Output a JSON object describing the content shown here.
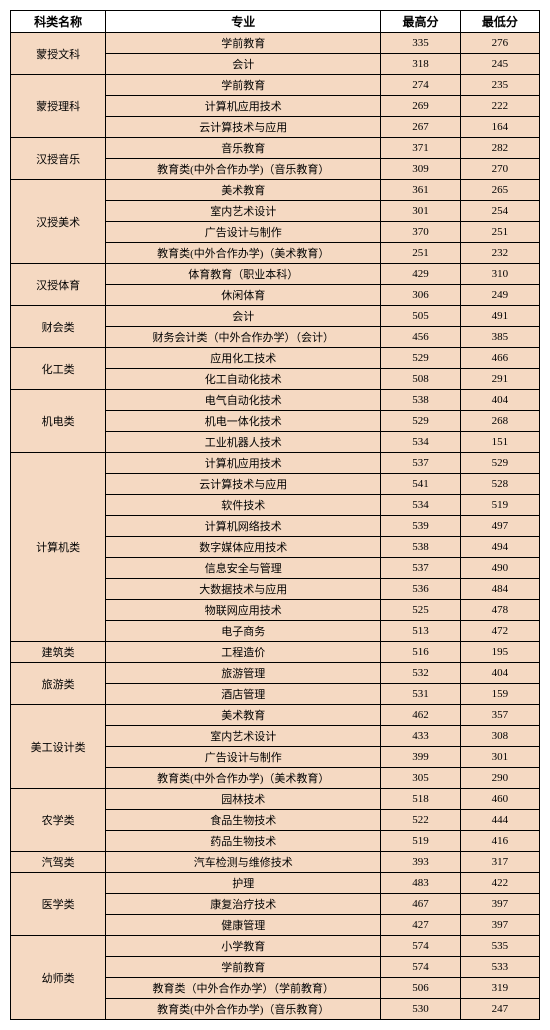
{
  "headers": {
    "category": "科类名称",
    "major": "专业",
    "high": "最高分",
    "low": "最低分"
  },
  "groups": [
    {
      "category": "蒙授文科",
      "rows": [
        {
          "major": "学前教育",
          "high": 335,
          "low": 276
        },
        {
          "major": "会计",
          "high": 318,
          "low": 245
        }
      ]
    },
    {
      "category": "蒙授理科",
      "rows": [
        {
          "major": "学前教育",
          "high": 274,
          "low": 235
        },
        {
          "major": "计算机应用技术",
          "high": 269,
          "low": 222
        },
        {
          "major": "云计算技术与应用",
          "high": 267,
          "low": 164
        }
      ]
    },
    {
      "category": "汉授音乐",
      "rows": [
        {
          "major": "音乐教育",
          "high": 371,
          "low": 282
        },
        {
          "major": "教育类(中外合作办学)（音乐教育）",
          "high": 309,
          "low": 270
        }
      ]
    },
    {
      "category": "汉授美术",
      "rows": [
        {
          "major": "美术教育",
          "high": 361,
          "low": 265
        },
        {
          "major": "室内艺术设计",
          "high": 301,
          "low": 254
        },
        {
          "major": "广告设计与制作",
          "high": 370,
          "low": 251
        },
        {
          "major": "教育类(中外合作办学)（美术教育）",
          "high": 251,
          "low": 232
        }
      ]
    },
    {
      "category": "汉授体育",
      "rows": [
        {
          "major": "体育教育（职业本科）",
          "high": 429,
          "low": 310
        },
        {
          "major": "休闲体育",
          "high": 306,
          "low": 249
        }
      ]
    },
    {
      "category": "财会类",
      "rows": [
        {
          "major": "会计",
          "high": 505,
          "low": 491
        },
        {
          "major": "财务会计类（中外合作办学）（会计）",
          "high": 456,
          "low": 385
        }
      ]
    },
    {
      "category": "化工类",
      "rows": [
        {
          "major": "应用化工技术",
          "high": 529,
          "low": 466
        },
        {
          "major": "化工自动化技术",
          "high": 508,
          "low": 291
        }
      ]
    },
    {
      "category": "机电类",
      "rows": [
        {
          "major": "电气自动化技术",
          "high": 538,
          "low": 404
        },
        {
          "major": "机电一体化技术",
          "high": 529,
          "low": 268
        },
        {
          "major": "工业机器人技术",
          "high": 534,
          "low": 151
        }
      ]
    },
    {
      "category": "计算机类",
      "rows": [
        {
          "major": "计算机应用技术",
          "high": 537,
          "low": 529
        },
        {
          "major": "云计算技术与应用",
          "high": 541,
          "low": 528
        },
        {
          "major": "软件技术",
          "high": 534,
          "low": 519
        },
        {
          "major": "计算机网络技术",
          "high": 539,
          "low": 497
        },
        {
          "major": "数字媒体应用技术",
          "high": 538,
          "low": 494
        },
        {
          "major": "信息安全与管理",
          "high": 537,
          "low": 490
        },
        {
          "major": "大数据技术与应用",
          "high": 536,
          "low": 484
        },
        {
          "major": "物联网应用技术",
          "high": 525,
          "low": 478
        },
        {
          "major": "电子商务",
          "high": 513,
          "low": 472
        }
      ]
    },
    {
      "category": "建筑类",
      "rows": [
        {
          "major": "工程造价",
          "high": 516,
          "low": 195
        }
      ]
    },
    {
      "category": "旅游类",
      "rows": [
        {
          "major": "旅游管理",
          "high": 532,
          "low": 404
        },
        {
          "major": "酒店管理",
          "high": 531,
          "low": 159
        }
      ]
    },
    {
      "category": "美工设计类",
      "rows": [
        {
          "major": "美术教育",
          "high": 462,
          "low": 357
        },
        {
          "major": "室内艺术设计",
          "high": 433,
          "low": 308
        },
        {
          "major": "广告设计与制作",
          "high": 399,
          "low": 301
        },
        {
          "major": "教育类(中外合作办学)（美术教育）",
          "high": 305,
          "low": 290
        }
      ]
    },
    {
      "category": "农学类",
      "rows": [
        {
          "major": "园林技术",
          "high": 518,
          "low": 460
        },
        {
          "major": "食品生物技术",
          "high": 522,
          "low": 444
        },
        {
          "major": "药品生物技术",
          "high": 519,
          "low": 416
        }
      ]
    },
    {
      "category": "汽驾类",
      "rows": [
        {
          "major": "汽车检测与维修技术",
          "high": 393,
          "low": 317
        }
      ]
    },
    {
      "category": "医学类",
      "rows": [
        {
          "major": "护理",
          "high": 483,
          "low": 422
        },
        {
          "major": "康复治疗技术",
          "high": 467,
          "low": 397
        },
        {
          "major": "健康管理",
          "high": 427,
          "low": 397
        }
      ]
    },
    {
      "category": "幼师类",
      "rows": [
        {
          "major": "小学教育",
          "high": 574,
          "low": 535
        },
        {
          "major": "学前教育",
          "high": 574,
          "low": 533
        },
        {
          "major": "教育类（中外合作办学）（学前教育）",
          "high": 506,
          "low": 319
        },
        {
          "major": "教育类(中外合作办学)（音乐教育）",
          "high": 530,
          "low": 247
        }
      ]
    }
  ],
  "style": {
    "row_bg": "#f5d9c2",
    "header_bg": "#ffffff",
    "border_color": "#000000",
    "font_size": 11
  }
}
